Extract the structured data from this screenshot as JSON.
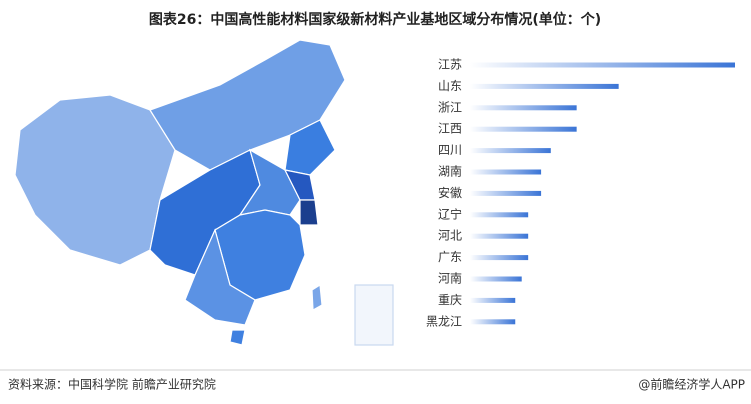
{
  "chart_data": {
    "type": "bar",
    "orientation": "horizontal",
    "title": "图表26：中国高性能材料国家级新材料产业基地区域分布情况(单位：个)",
    "categories": [
      "江苏",
      "山东",
      "浙江",
      "江西",
      "四川",
      "湖南",
      "安徽",
      "辽宁",
      "河北",
      "广东",
      "河南",
      "重庆",
      "黑龙江"
    ],
    "values": [
      41,
      23,
      16.5,
      16.5,
      12.5,
      11,
      11,
      9,
      9,
      9,
      8,
      7,
      7
    ],
    "color": "#3a74d6",
    "source": "资料来源：中国科学院 前瞻产业研究院",
    "credit": "@前瞻经济学人APP"
  }
}
